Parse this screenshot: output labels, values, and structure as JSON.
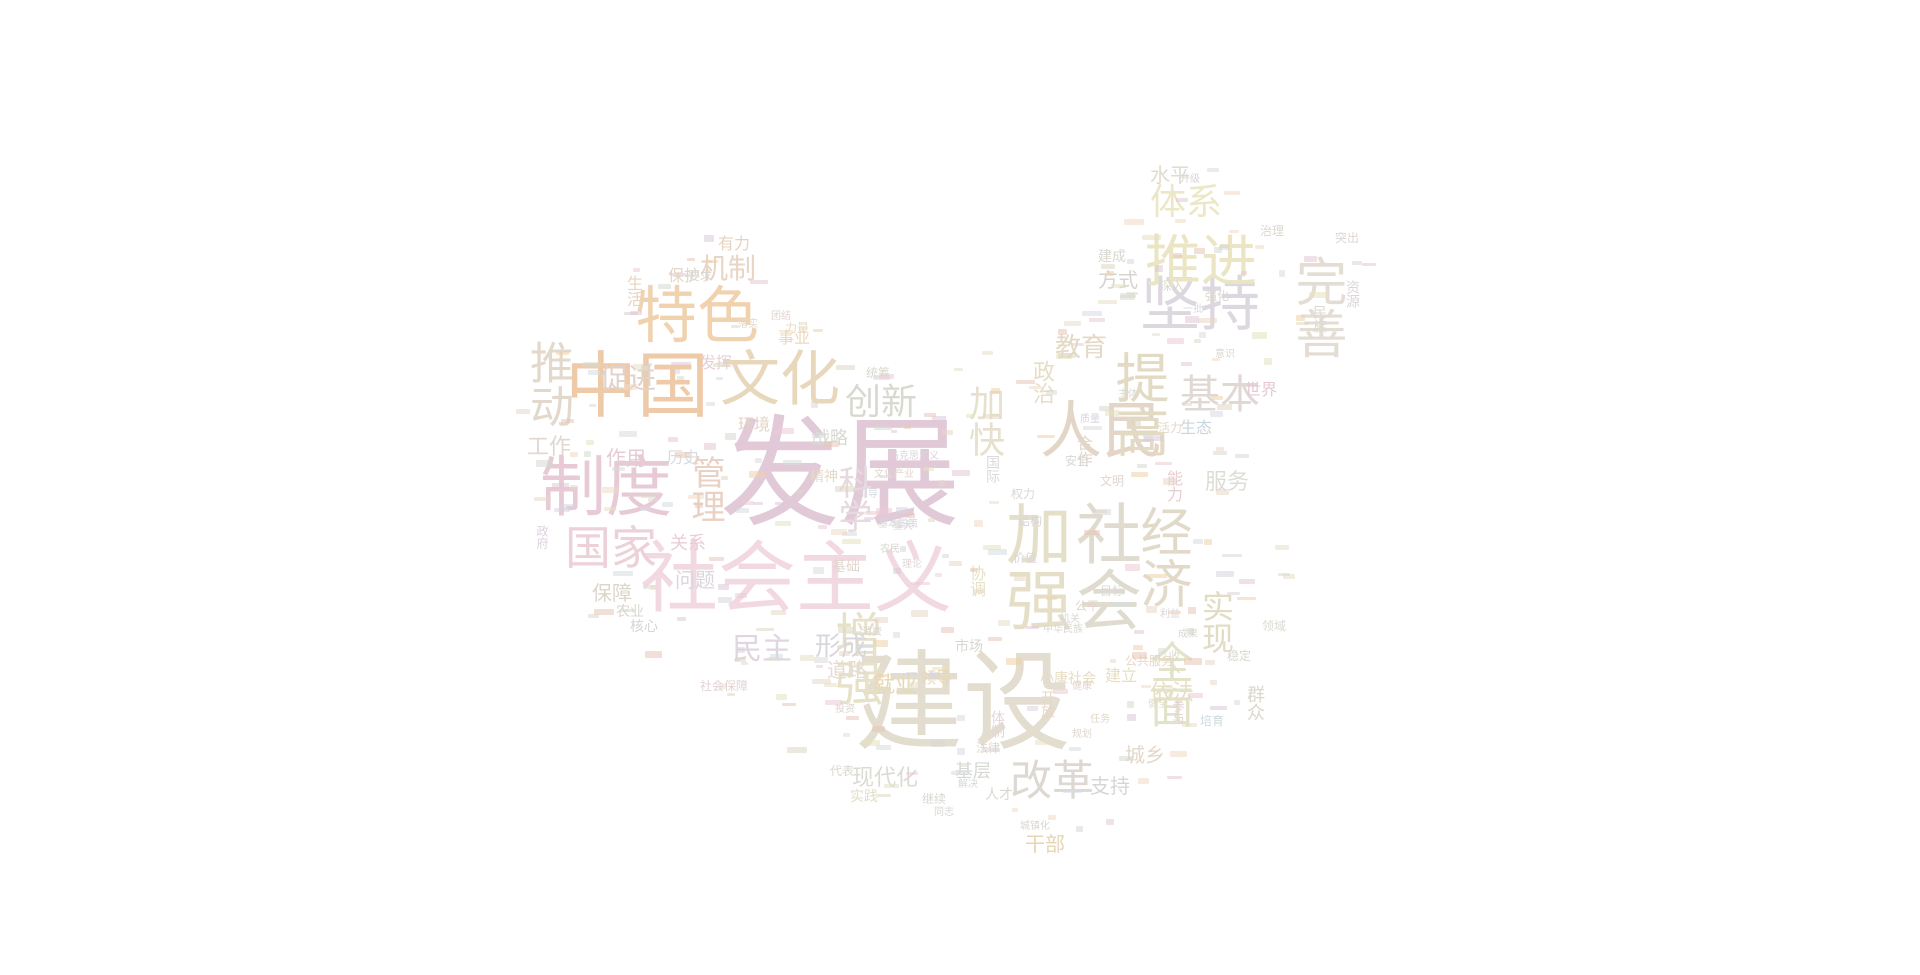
{
  "palette": [
    "#e4c7d3",
    "#e7d7c9",
    "#dfd7c5",
    "#e8c6b8",
    "#efd2aa",
    "#e4e2c0",
    "#d8d4de",
    "#d7dcd8",
    "#f0d8c5",
    "#d9c8d8",
    "#e6e0c8",
    "#d6d9cf",
    "#eccbd4",
    "#d5dde3"
  ],
  "words": [
    {
      "text": "发展",
      "size": 120,
      "color": "#e1c9d7"
    },
    {
      "text": "建设",
      "size": 108,
      "color": "#e2ddce"
    },
    {
      "text": "社会主义",
      "size": 78,
      "color": "#f2d9e1"
    },
    {
      "text": "中国",
      "size": 72,
      "color": "#efcaa9"
    },
    {
      "text": "制度",
      "size": 66,
      "color": "#e7cad5"
    },
    {
      "text": "特色",
      "size": 62,
      "color": "#f0d2af"
    },
    {
      "text": "文化",
      "size": 60,
      "color": "#e8d7ba"
    },
    {
      "text": "人民",
      "size": 62,
      "color": "#e4d6c6"
    },
    {
      "text": "坚持",
      "size": 60,
      "color": "#ddd8e0"
    },
    {
      "text": "推进",
      "size": 56,
      "color": "#ece5c4"
    },
    {
      "text": "提高",
      "size": 54,
      "color": "#e3dac3"
    },
    {
      "text": "完善",
      "size": 52,
      "color": "#e4ddd4"
    },
    {
      "text": "加强",
      "size": 66,
      "color": "#e6dfc8"
    },
    {
      "text": "社会",
      "size": 66,
      "color": "#dfdccf"
    },
    {
      "text": "经济",
      "size": 52,
      "color": "#e2dac9"
    },
    {
      "text": "国家",
      "size": 46,
      "color": "#ecd1d8"
    },
    {
      "text": "推动",
      "size": 44,
      "color": "#e2d8cc"
    },
    {
      "text": "增强",
      "size": 48,
      "color": "#e6e1c7"
    },
    {
      "text": "全面",
      "size": 44,
      "color": "#e3e3c9"
    },
    {
      "text": "改革",
      "size": 42,
      "color": "#ddd8d1"
    },
    {
      "text": "基本",
      "size": 40,
      "color": "#e0d8d4"
    },
    {
      "text": "体系",
      "size": 36,
      "color": "#ece7c6"
    },
    {
      "text": "创新",
      "size": 36,
      "color": "#d9d9d1"
    },
    {
      "text": "科学",
      "size": 34,
      "color": "#e6dadf"
    },
    {
      "text": "管理",
      "size": 34,
      "color": "#e9d2c4"
    },
    {
      "text": "实现",
      "size": 32,
      "color": "#e1dcc3"
    },
    {
      "text": "机制",
      "size": 28,
      "color": "#e8d5c5"
    },
    {
      "text": "促进",
      "size": 28,
      "color": "#e0d3cc"
    },
    {
      "text": "教育",
      "size": 26,
      "color": "#e4d9c5"
    },
    {
      "text": "民主",
      "size": 30,
      "color": "#dfd6e0"
    },
    {
      "text": "形成",
      "size": 26,
      "color": "#d8d6dc"
    },
    {
      "text": "就业",
      "size": 22,
      "color": "#e8d9b5"
    },
    {
      "text": "道路",
      "size": 20,
      "color": "#e4dcd1"
    },
    {
      "text": "服务",
      "size": 22,
      "color": "#dedcd4"
    },
    {
      "text": "依法",
      "size": 22,
      "color": "#e6e0c2"
    },
    {
      "text": "支持",
      "size": 20,
      "color": "#d5d7d6"
    },
    {
      "text": "现代化",
      "size": 22,
      "color": "#dadcd3"
    },
    {
      "text": "基层",
      "size": 18,
      "color": "#d4d7d2"
    },
    {
      "text": "干部",
      "size": 20,
      "color": "#e6d5b4"
    },
    {
      "text": "城乡",
      "size": 20,
      "color": "#e3d8cb"
    },
    {
      "text": "方式",
      "size": 20,
      "color": "#d7d3cf"
    },
    {
      "text": "水平",
      "size": 20,
      "color": "#dfdccd"
    },
    {
      "text": "问题",
      "size": 20,
      "color": "#dbd5dd"
    },
    {
      "text": "关系",
      "size": 18,
      "color": "#e9cdd9"
    },
    {
      "text": "保障",
      "size": 20,
      "color": "#dcd6c8"
    },
    {
      "text": "农业",
      "size": 14,
      "color": "#d9d7cd"
    },
    {
      "text": "核心",
      "size": 14,
      "color": "#d7d4d4"
    },
    {
      "text": "工作",
      "size": 22,
      "color": "#e2d6d0"
    },
    {
      "text": "作用",
      "size": 20,
      "color": "#e5ccd3"
    },
    {
      "text": "历史",
      "size": 16,
      "color": "#d8dadf"
    },
    {
      "text": "战略",
      "size": 18,
      "color": "#d6dad0"
    },
    {
      "text": "环境",
      "size": 16,
      "color": "#e3d3c6"
    },
    {
      "text": "生态",
      "size": 16,
      "color": "#c8d6de"
    },
    {
      "text": "世界",
      "size": 16,
      "color": "#e4c8d4"
    },
    {
      "text": "事业",
      "size": 16,
      "color": "#ecd7bd"
    },
    {
      "text": "保护",
      "size": 16,
      "color": "#e3d6c5"
    },
    {
      "text": "有力",
      "size": 16,
      "color": "#e7d3bd"
    },
    {
      "text": "生活",
      "size": 16,
      "color": "#e9d4c0"
    },
    {
      "text": "发挥",
      "size": 16,
      "color": "#e6d0d8"
    },
    {
      "text": "市场",
      "size": 14,
      "color": "#d6d7d0"
    },
    {
      "text": "建立",
      "size": 16,
      "color": "#e6dfc3"
    },
    {
      "text": "领导",
      "size": 16,
      "color": "#e8d6b3"
    },
    {
      "text": "群众",
      "size": 18,
      "color": "#dbd7cd"
    },
    {
      "text": "资源",
      "size": 14,
      "color": "#dcd6d8"
    },
    {
      "text": "建成",
      "size": 14,
      "color": "#d9d8cf"
    },
    {
      "text": "突出",
      "size": 12,
      "color": "#ddd7d3"
    },
    {
      "text": "治理",
      "size": 12,
      "color": "#dcd8ce"
    },
    {
      "text": "实践",
      "size": 14,
      "color": "#e2ddc8"
    },
    {
      "text": "人才",
      "size": 14,
      "color": "#dbd8d0"
    },
    {
      "text": "小康社会",
      "size": 14,
      "color": "#e6dcc3"
    },
    {
      "text": "国际",
      "size": 14,
      "color": "#ddd8db"
    },
    {
      "text": "协调",
      "size": 16,
      "color": "#e7e1c6"
    },
    {
      "text": "能力",
      "size": 16,
      "color": "#e8cdd3"
    },
    {
      "text": "合作",
      "size": 16,
      "color": "#e1d6cb"
    },
    {
      "text": "活力",
      "size": 12,
      "color": "#e4d8cb"
    },
    {
      "text": "加快",
      "size": 36,
      "color": "#e6e0cc"
    },
    {
      "text": "政治",
      "size": 22,
      "color": "#e6dfc3"
    },
    {
      "text": "开放",
      "size": 14,
      "color": "#e8d6c8"
    },
    {
      "text": "公平",
      "size": 12,
      "color": "#e3d3cd"
    },
    {
      "text": "政府",
      "size": 12,
      "color": "#dcd2dd"
    },
    {
      "text": "要求",
      "size": 12,
      "color": "#d9d5cf"
    },
    {
      "text": "升级",
      "size": 10,
      "color": "#d8d4d4"
    },
    {
      "text": "深入",
      "size": 12,
      "color": "#d8d9c8"
    },
    {
      "text": "统筹",
      "size": 12,
      "color": "#d7d9cf"
    },
    {
      "text": "民族",
      "size": 14,
      "color": "#dcdad0"
    },
    {
      "text": "强化",
      "size": 12,
      "color": "#dbd8cd"
    },
    {
      "text": "继续",
      "size": 12,
      "color": "#d9d7d2"
    },
    {
      "text": "力量",
      "size": 12,
      "color": "#e7d9c1"
    },
    {
      "text": "基础",
      "size": 14,
      "color": "#e0d7cf"
    },
    {
      "text": "体制",
      "size": 14,
      "color": "#e2d7d9"
    },
    {
      "text": "消费",
      "size": 10,
      "color": "#d7d6d2"
    },
    {
      "text": "代表",
      "size": 12,
      "color": "#dbd6d0"
    },
    {
      "text": "结构",
      "size": 12,
      "color": "#d8d6dc"
    },
    {
      "text": "法律",
      "size": 12,
      "color": "#e0d8c9"
    },
    {
      "text": "目标",
      "size": 12,
      "color": "#d8dad6"
    },
    {
      "text": "权力",
      "size": 12,
      "color": "#ddd6d2"
    },
    {
      "text": "公共服务",
      "size": 12,
      "color": "#e7d6c6"
    },
    {
      "text": "社会保障",
      "size": 12,
      "color": "#e3d2d6"
    },
    {
      "text": "马克思主义",
      "size": 10,
      "color": "#d8d4da"
    },
    {
      "text": "领域",
      "size": 12,
      "color": "#dcdad2"
    },
    {
      "text": "参与",
      "size": 12,
      "color": "#e3d1d4"
    },
    {
      "text": "培育",
      "size": 12,
      "color": "#cdd9e0"
    },
    {
      "text": "精神",
      "size": 14,
      "color": "#e6d9c7"
    },
    {
      "text": "一批",
      "size": 10,
      "color": "#d4dbd7"
    },
    {
      "text": "收入",
      "size": 12,
      "color": "#dedbcf"
    },
    {
      "text": "同志",
      "size": 10,
      "color": "#d9d6d2"
    },
    {
      "text": "价值",
      "size": 12,
      "color": "#dcd6d8"
    },
    {
      "text": "稳定",
      "size": 12,
      "color": "#d9d7cd"
    },
    {
      "text": "规划",
      "size": 10,
      "color": "#ddd9cf"
    },
    {
      "text": "文明",
      "size": 12,
      "color": "#e2d7cd"
    },
    {
      "text": "安全",
      "size": 12,
      "color": "#d6d9d7"
    },
    {
      "text": "质量",
      "size": 10,
      "color": "#d8d3dd"
    },
    {
      "text": "意识",
      "size": 10,
      "color": "#dbd5cf"
    },
    {
      "text": "主体",
      "size": 10,
      "color": "#d9dad4"
    },
    {
      "text": "理论",
      "size": 10,
      "color": "#e2d5d8"
    },
    {
      "text": "引导",
      "size": 10,
      "color": "#d5d9dc"
    },
    {
      "text": "落实",
      "size": 10,
      "color": "#dfd8cb"
    },
    {
      "text": "团结",
      "size": 10,
      "color": "#e2d4d0"
    },
    {
      "text": "重大",
      "size": 10,
      "color": "#dcd6cf"
    },
    {
      "text": "健全",
      "size": 10,
      "color": "#e1dcc8"
    },
    {
      "text": "机关",
      "size": 10,
      "color": "#d6d9d5"
    },
    {
      "text": "投资",
      "size": 10,
      "color": "#dbd5d1"
    },
    {
      "text": "成果",
      "size": 10,
      "color": "#d9d8cf"
    },
    {
      "text": "利益",
      "size": 10,
      "color": "#ddd5da"
    },
    {
      "text": "任务",
      "size": 10,
      "color": "#e0d9ca"
    },
    {
      "text": "农民",
      "size": 10,
      "color": "#d7d7d0"
    },
    {
      "text": "基本国策",
      "size": 10,
      "color": "#d7d5de"
    },
    {
      "text": "健康",
      "size": 10,
      "color": "#e6d3cd"
    },
    {
      "text": "文化产业",
      "size": 10,
      "color": "#e1d8cd"
    },
    {
      "text": "中华民族",
      "size": 10,
      "color": "#dbd7cf"
    },
    {
      "text": "解决",
      "size": 10,
      "color": "#d6d8d6"
    },
    {
      "text": "城镇化",
      "size": 10,
      "color": "#d9d6d0"
    }
  ]
}
